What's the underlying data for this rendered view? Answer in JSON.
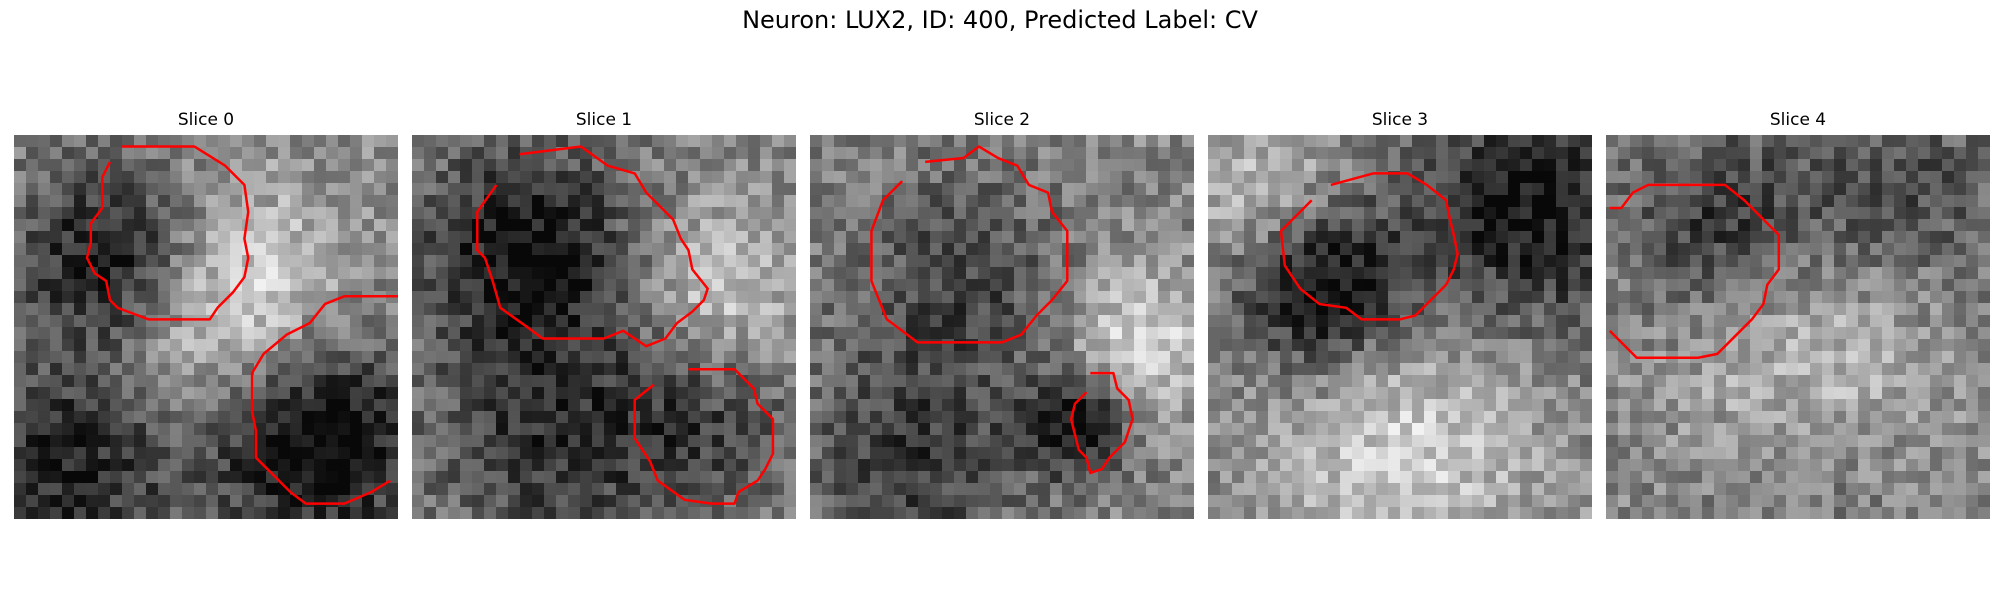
{
  "figure": {
    "title": "Neuron: LUX2, ID: 400, Predicted Label: CV"
  },
  "panels": [
    {
      "title": "Slice 0",
      "seed": 11,
      "blobs": [
        [
          0.27,
          0.32,
          0.17,
          -0.55
        ],
        [
          0.78,
          0.78,
          0.2,
          -0.6
        ],
        [
          0.55,
          0.45,
          0.22,
          0.45
        ],
        [
          0.15,
          0.85,
          0.2,
          -0.4
        ]
      ],
      "contours": [
        [
          [
            0.28,
            0.03
          ],
          [
            0.47,
            0.03
          ],
          [
            0.55,
            0.08
          ],
          [
            0.6,
            0.13
          ],
          [
            0.61,
            0.2
          ],
          [
            0.6,
            0.27
          ],
          [
            0.61,
            0.32
          ],
          [
            0.6,
            0.37
          ],
          [
            0.57,
            0.41
          ],
          [
            0.53,
            0.45
          ],
          [
            0.51,
            0.48
          ],
          [
            0.35,
            0.48
          ],
          [
            0.27,
            0.45
          ],
          [
            0.25,
            0.43
          ],
          [
            0.24,
            0.38
          ],
          [
            0.21,
            0.36
          ],
          [
            0.19,
            0.32
          ],
          [
            0.2,
            0.28
          ],
          [
            0.2,
            0.23
          ],
          [
            0.23,
            0.19
          ],
          [
            0.23,
            0.11
          ],
          [
            0.25,
            0.07
          ]
        ],
        [
          [
            1.0,
            0.42
          ],
          [
            0.86,
            0.42
          ],
          [
            0.81,
            0.44
          ],
          [
            0.77,
            0.49
          ],
          [
            0.71,
            0.52
          ],
          [
            0.65,
            0.57
          ],
          [
            0.62,
            0.62
          ],
          [
            0.62,
            0.72
          ],
          [
            0.63,
            0.77
          ],
          [
            0.63,
            0.84
          ],
          [
            0.68,
            0.89
          ],
          [
            0.72,
            0.93
          ],
          [
            0.76,
            0.96
          ],
          [
            0.86,
            0.96
          ],
          [
            0.93,
            0.93
          ],
          [
            0.98,
            0.9
          ]
        ]
      ]
    },
    {
      "title": "Slice 1",
      "seed": 23,
      "blobs": [
        [
          0.3,
          0.3,
          0.2,
          -0.45
        ],
        [
          0.75,
          0.75,
          0.18,
          -0.25
        ],
        [
          0.8,
          0.4,
          0.15,
          0.3
        ],
        [
          0.35,
          0.8,
          0.22,
          -0.3
        ]
      ],
      "contours": [
        [
          [
            0.28,
            0.05
          ],
          [
            0.44,
            0.03
          ],
          [
            0.51,
            0.08
          ],
          [
            0.58,
            0.1
          ],
          [
            0.61,
            0.15
          ],
          [
            0.64,
            0.18
          ],
          [
            0.68,
            0.22
          ],
          [
            0.7,
            0.27
          ],
          [
            0.72,
            0.3
          ],
          [
            0.73,
            0.35
          ],
          [
            0.77,
            0.4
          ],
          [
            0.76,
            0.43
          ],
          [
            0.73,
            0.46
          ],
          [
            0.69,
            0.49
          ],
          [
            0.66,
            0.53
          ],
          [
            0.61,
            0.55
          ],
          [
            0.55,
            0.51
          ],
          [
            0.5,
            0.53
          ],
          [
            0.44,
            0.53
          ],
          [
            0.34,
            0.53
          ],
          [
            0.3,
            0.5
          ],
          [
            0.23,
            0.45
          ],
          [
            0.21,
            0.38
          ],
          [
            0.19,
            0.32
          ],
          [
            0.17,
            0.3
          ],
          [
            0.17,
            0.2
          ],
          [
            0.22,
            0.13
          ]
        ],
        [
          [
            0.72,
            0.61
          ],
          [
            0.84,
            0.61
          ],
          [
            0.89,
            0.66
          ],
          [
            0.9,
            0.7
          ],
          [
            0.94,
            0.74
          ],
          [
            0.94,
            0.83
          ],
          [
            0.92,
            0.87
          ],
          [
            0.9,
            0.9
          ],
          [
            0.85,
            0.93
          ],
          [
            0.84,
            0.96
          ],
          [
            0.78,
            0.96
          ],
          [
            0.71,
            0.95
          ],
          [
            0.64,
            0.9
          ],
          [
            0.62,
            0.85
          ],
          [
            0.58,
            0.79
          ],
          [
            0.58,
            0.69
          ],
          [
            0.63,
            0.65
          ]
        ]
      ]
    },
    {
      "title": "Slice 2",
      "seed": 37,
      "blobs": [
        [
          0.4,
          0.38,
          0.2,
          -0.25
        ],
        [
          0.7,
          0.75,
          0.1,
          -0.5
        ],
        [
          0.85,
          0.55,
          0.14,
          0.35
        ],
        [
          0.25,
          0.85,
          0.2,
          -0.3
        ]
      ],
      "contours": [
        [
          [
            0.3,
            0.07
          ],
          [
            0.4,
            0.06
          ],
          [
            0.44,
            0.03
          ],
          [
            0.49,
            0.06
          ],
          [
            0.54,
            0.08
          ],
          [
            0.57,
            0.13
          ],
          [
            0.62,
            0.15
          ],
          [
            0.63,
            0.2
          ],
          [
            0.67,
            0.25
          ],
          [
            0.67,
            0.38
          ],
          [
            0.63,
            0.43
          ],
          [
            0.59,
            0.47
          ],
          [
            0.55,
            0.52
          ],
          [
            0.5,
            0.54
          ],
          [
            0.4,
            0.54
          ],
          [
            0.28,
            0.54
          ],
          [
            0.2,
            0.48
          ],
          [
            0.16,
            0.38
          ],
          [
            0.16,
            0.25
          ],
          [
            0.19,
            0.17
          ],
          [
            0.24,
            0.12
          ]
        ],
        [
          [
            0.73,
            0.62
          ],
          [
            0.79,
            0.62
          ],
          [
            0.8,
            0.66
          ],
          [
            0.83,
            0.69
          ],
          [
            0.84,
            0.74
          ],
          [
            0.82,
            0.8
          ],
          [
            0.8,
            0.82
          ],
          [
            0.78,
            0.84
          ],
          [
            0.76,
            0.87
          ],
          [
            0.73,
            0.88
          ],
          [
            0.72,
            0.84
          ],
          [
            0.7,
            0.82
          ],
          [
            0.68,
            0.74
          ],
          [
            0.69,
            0.7
          ],
          [
            0.72,
            0.67
          ]
        ]
      ]
    },
    {
      "title": "Slice 3",
      "seed": 53,
      "blobs": [
        [
          0.3,
          0.4,
          0.16,
          -0.55
        ],
        [
          0.85,
          0.2,
          0.22,
          -0.45
        ],
        [
          0.5,
          0.8,
          0.25,
          0.3
        ],
        [
          0.15,
          0.15,
          0.15,
          0.25
        ]
      ],
      "contours": [
        [
          [
            0.32,
            0.13
          ],
          [
            0.43,
            0.1
          ],
          [
            0.52,
            0.1
          ],
          [
            0.57,
            0.13
          ],
          [
            0.62,
            0.17
          ],
          [
            0.63,
            0.22
          ],
          [
            0.64,
            0.26
          ],
          [
            0.65,
            0.31
          ],
          [
            0.64,
            0.35
          ],
          [
            0.62,
            0.39
          ],
          [
            0.58,
            0.43
          ],
          [
            0.54,
            0.47
          ],
          [
            0.5,
            0.48
          ],
          [
            0.4,
            0.48
          ],
          [
            0.36,
            0.45
          ],
          [
            0.29,
            0.44
          ],
          [
            0.24,
            0.4
          ],
          [
            0.2,
            0.34
          ],
          [
            0.19,
            0.25
          ],
          [
            0.23,
            0.21
          ],
          [
            0.27,
            0.17
          ]
        ],
        []
      ]
    },
    {
      "title": "Slice 4",
      "seed": 71,
      "blobs": [
        [
          0.3,
          0.25,
          0.18,
          -0.35
        ],
        [
          0.75,
          0.15,
          0.2,
          -0.25
        ],
        [
          0.5,
          0.55,
          0.25,
          0.25
        ],
        [
          0.5,
          0.95,
          0.2,
          -0.1
        ]
      ],
      "contours": [
        [
          [
            0.01,
            0.19
          ],
          [
            0.04,
            0.19
          ],
          [
            0.07,
            0.15
          ],
          [
            0.11,
            0.13
          ],
          [
            0.24,
            0.13
          ],
          [
            0.31,
            0.13
          ],
          [
            0.36,
            0.17
          ],
          [
            0.41,
            0.22
          ],
          [
            0.45,
            0.26
          ],
          [
            0.45,
            0.35
          ],
          [
            0.42,
            0.39
          ],
          [
            0.41,
            0.44
          ],
          [
            0.38,
            0.48
          ],
          [
            0.34,
            0.52
          ],
          [
            0.29,
            0.57
          ],
          [
            0.24,
            0.58
          ],
          [
            0.2,
            0.58
          ],
          [
            0.14,
            0.58
          ],
          [
            0.08,
            0.58
          ],
          [
            0.04,
            0.54
          ],
          [
            0.01,
            0.51
          ]
        ],
        []
      ]
    }
  ],
  "style": {
    "contour_color": "#ff0000"
  }
}
